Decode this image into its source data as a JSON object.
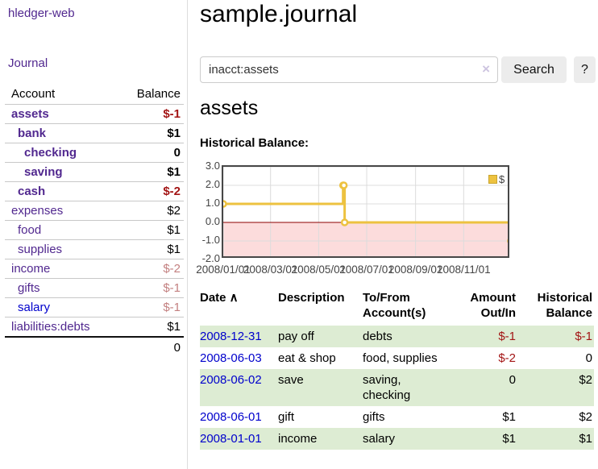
{
  "app": {
    "brand": "hledger-web",
    "nav_journal": "Journal"
  },
  "colors": {
    "link_purple": "#51288f",
    "link_blue": "#0000cc",
    "negative_strong": "#a31515",
    "negative_soft": "#c38080",
    "row_green": "#ddecd3",
    "chart_gold": "#EDC240"
  },
  "sidebar": {
    "table": {
      "headers": [
        "Account",
        "Balance"
      ],
      "rows": [
        {
          "account": "assets",
          "balance": "$-1",
          "depth": 0,
          "bold": true,
          "neg": "strong"
        },
        {
          "account": "bank",
          "balance": "$1",
          "depth": 1,
          "bold": true,
          "neg": "none"
        },
        {
          "account": "checking",
          "balance": "0",
          "depth": 2,
          "bold": true,
          "neg": "none"
        },
        {
          "account": "saving",
          "balance": "$1",
          "depth": 2,
          "bold": true,
          "neg": "none"
        },
        {
          "account": "cash",
          "balance": "$-2",
          "depth": 1,
          "bold": true,
          "neg": "strong"
        },
        {
          "account": "expenses",
          "balance": "$2",
          "depth": 0,
          "bold": false,
          "neg": "none"
        },
        {
          "account": "food",
          "balance": "$1",
          "depth": 1,
          "bold": false,
          "neg": "none"
        },
        {
          "account": "supplies",
          "balance": "$1",
          "depth": 1,
          "bold": false,
          "neg": "none"
        },
        {
          "account": "income",
          "balance": "$-2",
          "depth": 0,
          "bold": false,
          "neg": "soft"
        },
        {
          "account": "gifts",
          "balance": "$-1",
          "depth": 1,
          "bold": false,
          "neg": "soft"
        },
        {
          "account": "salary",
          "balance": "$-1",
          "depth": 1,
          "bold": false,
          "neg": "soft",
          "blue": true
        },
        {
          "account": "liabilities:debts",
          "balance": "$1",
          "depth": 0,
          "bold": false,
          "neg": "none"
        }
      ],
      "total": "0"
    }
  },
  "header": {
    "title": "sample.journal"
  },
  "search": {
    "value": "inacct:assets",
    "clear_icon": "×",
    "button_label": "Search",
    "help_label": "?"
  },
  "account_page": {
    "heading": "assets",
    "chart_label": "Historical Balance:"
  },
  "chart_data": {
    "type": "line",
    "title": "Historical Balance",
    "step": true,
    "series": [
      {
        "name": "$",
        "color": "#EDC240",
        "points": [
          [
            "2008-01-01",
            1
          ],
          [
            "2008-06-01",
            2
          ],
          [
            "2008-06-02",
            2
          ],
          [
            "2008-06-03",
            0
          ],
          [
            "2008-12-31",
            -1
          ]
        ]
      }
    ],
    "xlim": [
      "2008-01-01",
      "2008-12-31"
    ],
    "ylim": [
      -2.0,
      3.0
    ],
    "yticks": [
      3.0,
      2.0,
      1.0,
      0.0,
      -1.0,
      -2.0
    ],
    "xticks": [
      "2008/01/01",
      "2008/03/01",
      "2008/05/01",
      "2008/07/01",
      "2008/09/01",
      "2008/11/01"
    ],
    "grid": true,
    "legend_position": "top-right",
    "legend": [
      "$"
    ],
    "negative_fill": "#fcdcdc",
    "zero_line_color": "#8b0000",
    "grid_color": "#dcdcdc",
    "border_color": "#474747"
  },
  "register": {
    "sort_icon": "∧",
    "columns": [
      "Date",
      "Description",
      "To/From Account(s)",
      "Amount Out/In",
      "Historical Balance"
    ],
    "rows": [
      {
        "date": "2008-12-31",
        "description": "pay off",
        "accounts": "debts",
        "amount": "$-1",
        "balance": "$-1"
      },
      {
        "date": "2008-06-03",
        "description": "eat & shop",
        "accounts": "food, supplies",
        "amount": "$-2",
        "balance": "0"
      },
      {
        "date": "2008-06-02",
        "description": "save",
        "accounts": "saving, checking",
        "amount": "0",
        "balance": "$2"
      },
      {
        "date": "2008-06-01",
        "description": "gift",
        "accounts": "gifts",
        "amount": "$1",
        "balance": "$2"
      },
      {
        "date": "2008-01-01",
        "description": "income",
        "accounts": "salary",
        "amount": "$1",
        "balance": "$1"
      }
    ]
  }
}
